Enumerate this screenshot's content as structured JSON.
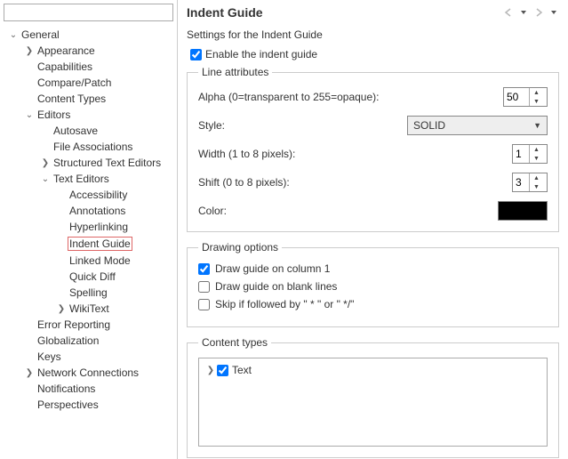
{
  "header": {
    "title": "Indent Guide"
  },
  "settingsDesc": "Settings for the Indent Guide",
  "enable": {
    "label": "Enable the indent guide",
    "checked": true
  },
  "lineAttributes": {
    "legend": "Line attributes",
    "alpha": {
      "label": "Alpha (0=transparent to 255=opaque):",
      "value": "50"
    },
    "style": {
      "label": "Style:",
      "value": "SOLID"
    },
    "width": {
      "label": "Width (1 to 8 pixels):",
      "value": "1"
    },
    "shift": {
      "label": "Shift (0 to 8 pixels):",
      "value": "3"
    },
    "color": {
      "label": "Color:",
      "value": "#000000"
    }
  },
  "drawing": {
    "legend": "Drawing options",
    "col1": {
      "label": "Draw guide on column 1",
      "checked": true
    },
    "blank": {
      "label": "Draw guide on blank lines",
      "checked": false
    },
    "skip": {
      "label": "Skip if followed by \" * \" or \" */\"",
      "checked": false
    }
  },
  "contentTypes": {
    "legend": "Content types",
    "text": {
      "label": "Text",
      "checked": true
    }
  },
  "tree": [
    {
      "label": "General",
      "level": 0,
      "expanded": true
    },
    {
      "label": "Appearance",
      "level": 1,
      "expandable": true
    },
    {
      "label": "Capabilities",
      "level": 1
    },
    {
      "label": "Compare/Patch",
      "level": 1
    },
    {
      "label": "Content Types",
      "level": 1
    },
    {
      "label": "Editors",
      "level": 1,
      "expanded": true
    },
    {
      "label": "Autosave",
      "level": 2
    },
    {
      "label": "File Associations",
      "level": 2
    },
    {
      "label": "Structured Text Editors",
      "level": 2,
      "expandable": true
    },
    {
      "label": "Text Editors",
      "level": 2,
      "expanded": true
    },
    {
      "label": "Accessibility",
      "level": 3
    },
    {
      "label": "Annotations",
      "level": 3
    },
    {
      "label": "Hyperlinking",
      "level": 3
    },
    {
      "label": "Indent Guide",
      "level": 3,
      "selected": true
    },
    {
      "label": "Linked Mode",
      "level": 3
    },
    {
      "label": "Quick Diff",
      "level": 3
    },
    {
      "label": "Spelling",
      "level": 3
    },
    {
      "label": "WikiText",
      "level": 3,
      "expandable": true
    },
    {
      "label": "Error Reporting",
      "level": 1
    },
    {
      "label": "Globalization",
      "level": 1
    },
    {
      "label": "Keys",
      "level": 1
    },
    {
      "label": "Network Connections",
      "level": 1,
      "expandable": true
    },
    {
      "label": "Notifications",
      "level": 1
    },
    {
      "label": "Perspectives",
      "level": 1
    }
  ]
}
